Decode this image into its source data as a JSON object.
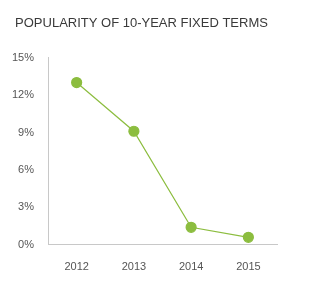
{
  "chart_data": {
    "type": "line",
    "title": "POPULARITY OF 10-YEAR FIXED TERMS",
    "categories": [
      "2012",
      "2013",
      "2014",
      "2015"
    ],
    "values": [
      13,
      9.1,
      1.4,
      0.6
    ],
    "color": "#8cbd3f",
    "marker": "circle",
    "ylim": [
      0,
      15
    ],
    "yticks": [
      {
        "value": 0,
        "label": "0%"
      },
      {
        "value": 3,
        "label": "3%"
      },
      {
        "value": 6,
        "label": "6%"
      },
      {
        "value": 9,
        "label": "9%"
      },
      {
        "value": 12,
        "label": "12%"
      },
      {
        "value": 15,
        "label": "15%"
      }
    ],
    "grid": false
  }
}
